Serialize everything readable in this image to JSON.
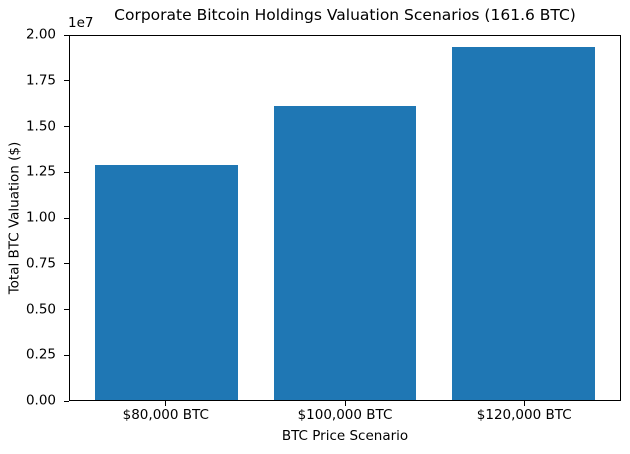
{
  "chart_data": {
    "type": "bar",
    "title": "Corporate Bitcoin Holdings Valuation Scenarios (161.6 BTC)",
    "categories": [
      "$80,000 BTC",
      "$100,000 BTC",
      "$120,000 BTC"
    ],
    "values": [
      12928000,
      16160000,
      19392000
    ],
    "xlabel": "BTC Price Scenario",
    "ylabel": "Total BTC Valuation ($)",
    "ylim": [
      0,
      20000000
    ],
    "y_ticks": [
      0,
      2500000,
      5000000,
      7500000,
      10000000,
      12500000,
      15000000,
      17500000,
      20000000
    ],
    "y_tick_labels": [
      "0.00",
      "0.25",
      "0.50",
      "0.75",
      "1.00",
      "1.25",
      "1.50",
      "1.75",
      "2.00"
    ],
    "y_offset_text": "1e7",
    "bar_color": "#1f77b4",
    "bar_width": 0.8,
    "x_margin": 0.05,
    "grid": false,
    "legend_position": "none",
    "background": "#ffffff"
  }
}
